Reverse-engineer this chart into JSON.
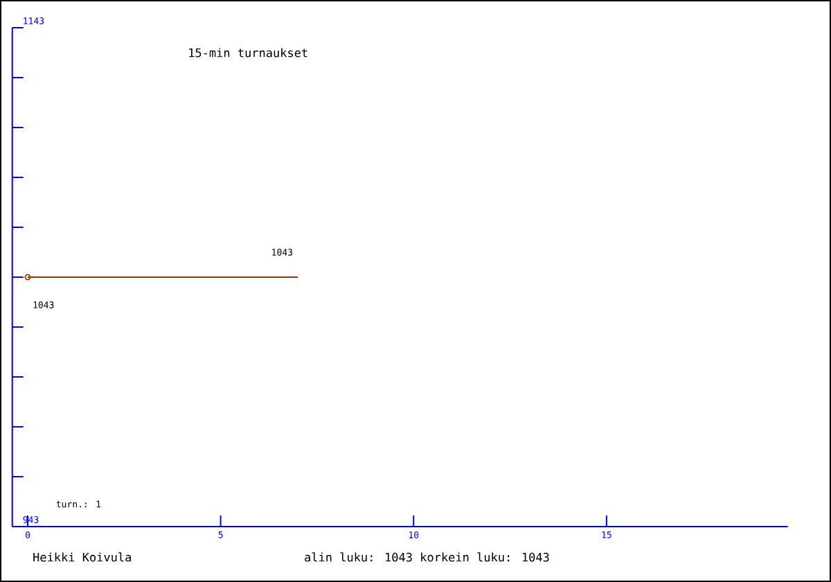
{
  "chart_data": {
    "type": "line",
    "title": "15-min turnaukset",
    "x": [
      0,
      7
    ],
    "series": [
      {
        "color": "#993300",
        "values": [
          1043,
          1043
        ]
      }
    ],
    "marker": "circle",
    "data_labels": true,
    "xlim": [
      -0.4,
      19.7
    ],
    "xticks": [
      0,
      5,
      10,
      15
    ],
    "ylim": [
      943,
      1143
    ],
    "yticks": [
      943,
      {
        "value": 963,
        "label": null
      },
      {
        "value": 983,
        "label": null
      },
      {
        "value": 1003,
        "label": null
      },
      {
        "value": 1023,
        "label": null
      },
      {
        "value": 1043,
        "label": null
      },
      {
        "value": 1063,
        "label": null
      },
      {
        "value": 1083,
        "label": null
      },
      {
        "value": 1103,
        "label": null
      },
      {
        "value": 1123,
        "label": null
      },
      1143
    ],
    "annotations": [
      "turn.: 1",
      "Heikki Koivula",
      "alin luku: 1043  korkein luku: 1043"
    ]
  }
}
